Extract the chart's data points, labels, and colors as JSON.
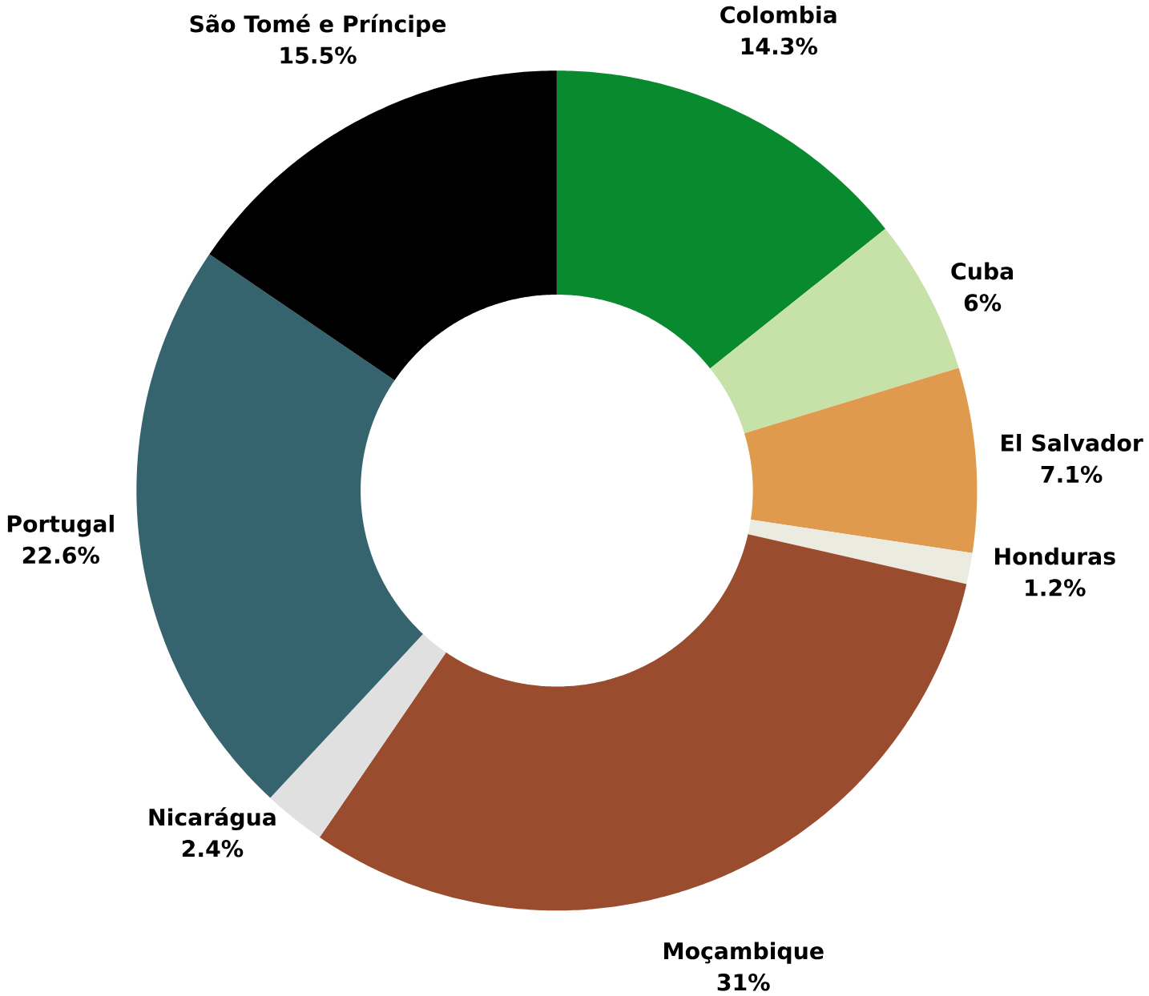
{
  "chart_data": {
    "type": "donut",
    "categories": [
      "Colombia",
      "Cuba",
      "El Salvador",
      "Honduras",
      "Moçambique",
      "Nicarágua",
      "Portugal",
      "São Tomé e Príncipe"
    ],
    "values": [
      14.3,
      6,
      7.1,
      1.2,
      31,
      2.4,
      22.6,
      15.5
    ],
    "value_labels": [
      "14.3%",
      "6%",
      "7.1%",
      "1.2%",
      "31%",
      "2.4%",
      "22.6%",
      "15.5%"
    ],
    "colors": [
      "#0a8a2e",
      "#c6e2a8",
      "#e09a4e",
      "#ecebe0",
      "#9a4c2e",
      "#e0e0e0",
      "#35646f",
      "#000000"
    ]
  }
}
